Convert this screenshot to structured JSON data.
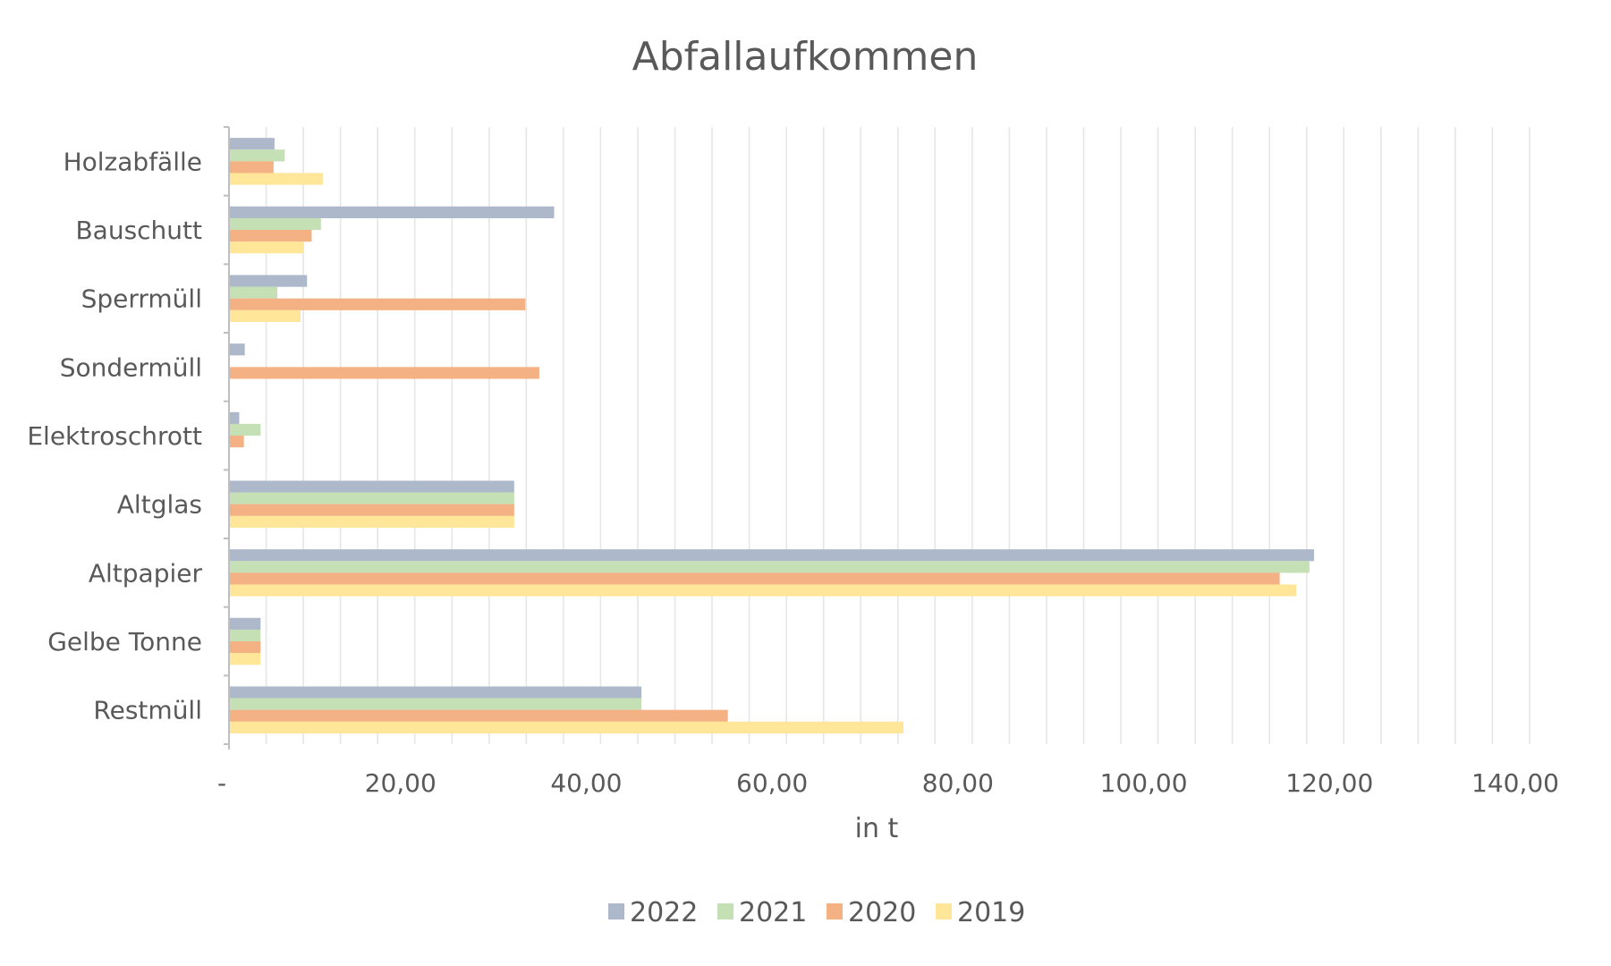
{
  "chart_data": {
    "type": "bar",
    "orientation": "horizontal",
    "title": "Abfallaufkommen",
    "xlabel": "in t",
    "ylabel": "",
    "xlim": [
      0,
      140
    ],
    "x_ticks": [
      0,
      20,
      40,
      60,
      80,
      100,
      120,
      140
    ],
    "x_tick_labels": [
      "-",
      "20,00",
      "40,00",
      "60,00",
      "80,00",
      "100,00",
      "120,00",
      "140,00"
    ],
    "minor_grid_step": 4,
    "grid": true,
    "legend_position": "bottom",
    "categories": [
      "Holzabfälle",
      "Bauschutt",
      "Sperrmüll",
      "Sondermüll",
      "Elektroschrott",
      "Altglas",
      "Altpapier",
      "Gelbe Tonne",
      "Restmüll"
    ],
    "series": [
      {
        "name": "2022",
        "color": "#adb9ca",
        "values": [
          4.9,
          35.0,
          8.4,
          1.7,
          1.1,
          30.7,
          116.8,
          3.4,
          44.4
        ]
      },
      {
        "name": "2021",
        "color": "#c5e0b4",
        "values": [
          6.0,
          9.9,
          5.2,
          0,
          3.4,
          30.7,
          116.3,
          3.4,
          44.4
        ]
      },
      {
        "name": "2020",
        "color": "#f4b183",
        "values": [
          4.8,
          8.9,
          31.9,
          33.4,
          1.6,
          30.7,
          113.1,
          3.4,
          53.7
        ]
      },
      {
        "name": "2019",
        "color": "#ffe699",
        "values": [
          10.1,
          8.0,
          7.7,
          0,
          0,
          30.7,
          114.9,
          3.4,
          72.6
        ]
      }
    ],
    "axis_color": "#bfbfbf",
    "grid_color": "#e6e6e6"
  }
}
